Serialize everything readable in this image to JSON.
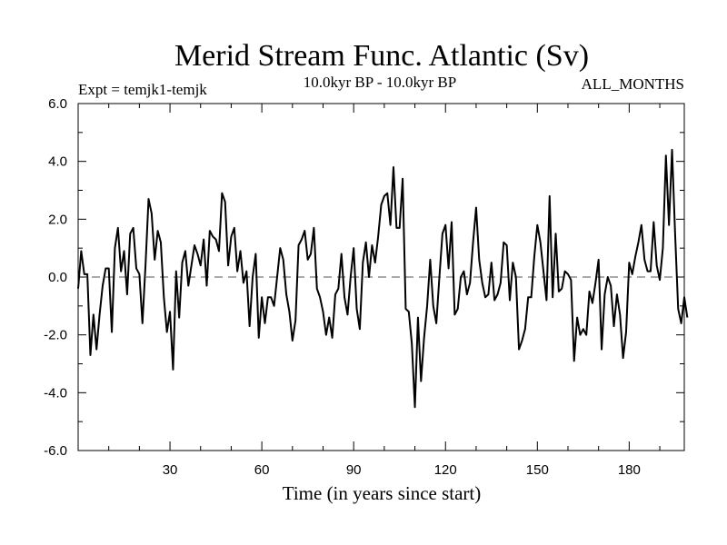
{
  "chart_data": {
    "type": "line",
    "title": "Merid Stream Func. Atlantic (Sv)",
    "left_label": "Expt = temjk1-temjk",
    "center_label": "10.0kyr BP - 10.0kyr BP",
    "right_label": "ALL_MONTHS",
    "xlabel": "Time (in years since start)",
    "ylabel": "",
    "xlim": [
      0,
      198
    ],
    "ylim": [
      -6,
      6
    ],
    "xticks": [
      30,
      60,
      90,
      120,
      150,
      180
    ],
    "xtick_labels": [
      "30",
      "60",
      "90",
      "120",
      "150",
      "180"
    ],
    "yticks": [
      6,
      4,
      2,
      0,
      -2,
      -4,
      -6
    ],
    "ytick_labels": [
      "6.0",
      "4.0",
      "2.0",
      "0.0",
      "-2.0",
      "-4.0",
      "-6.0"
    ],
    "reference_line": {
      "y": 0,
      "style": "dashed"
    },
    "series": [
      {
        "name": "Merid Stream Func. Atlantic",
        "x_start": 0,
        "x_step": 1,
        "values": [
          -0.4,
          0.9,
          0.1,
          0.1,
          -2.7,
          -1.3,
          -2.5,
          -1.3,
          -0.3,
          0.3,
          0.3,
          -1.9,
          1.0,
          1.7,
          0.2,
          0.9,
          -0.6,
          1.5,
          1.7,
          0.3,
          0.1,
          -1.6,
          0.4,
          2.7,
          2.2,
          0.6,
          1.6,
          1.2,
          -0.7,
          -1.9,
          -1.2,
          -3.2,
          0.2,
          -1.4,
          0.5,
          0.9,
          -0.3,
          0.4,
          1.1,
          0.8,
          0.4,
          1.3,
          -0.3,
          1.6,
          1.4,
          1.3,
          0.9,
          2.9,
          2.6,
          0.4,
          1.4,
          1.7,
          0.2,
          0.9,
          -0.2,
          0.2,
          -1.7,
          0.0,
          0.8,
          -2.1,
          -0.7,
          -1.6,
          -0.7,
          -0.7,
          -1.0,
          0.0,
          1.0,
          0.6,
          -0.6,
          -1.2,
          -2.2,
          -1.5,
          1.1,
          1.3,
          1.6,
          0.6,
          0.8,
          1.7,
          -0.4,
          -0.7,
          -1.2,
          -2.0,
          -1.4,
          -2.1,
          -0.6,
          -0.4,
          0.8,
          -0.7,
          -1.3,
          0.0,
          1.0,
          -1.1,
          -1.8,
          0.5,
          1.2,
          0.0,
          1.1,
          0.5,
          1.4,
          2.5,
          2.8,
          2.9,
          1.8,
          3.8,
          1.7,
          1.7,
          3.4,
          -1.1,
          -1.2,
          -2.3,
          -4.5,
          -1.4,
          -3.6,
          -2.1,
          -1.0,
          0.6,
          -1.0,
          -1.6,
          0.0,
          1.5,
          1.8,
          0.3,
          1.9,
          -1.3,
          -1.1,
          0.0,
          0.2,
          -0.6,
          -0.2,
          1.2,
          2.4,
          0.6,
          -0.2,
          -0.7,
          -0.6,
          0.5,
          -0.8,
          -0.6,
          -0.2,
          1.2,
          1.1,
          -0.8,
          0.5,
          0.0,
          -2.5,
          -2.2,
          -1.8,
          -0.7,
          -0.7,
          0.7,
          1.8,
          1.2,
          0.2,
          -0.8,
          2.8,
          -0.7,
          1.5,
          -0.5,
          -0.4,
          0.2,
          0.1,
          -0.1,
          -2.9,
          -1.4,
          -2.0,
          -1.8,
          -2.0,
          -0.5,
          -0.9,
          -0.2,
          0.6,
          -2.5,
          -0.6,
          0.0,
          -0.3,
          -1.7,
          -0.6,
          -1.3,
          -2.8,
          -1.9,
          0.5,
          0.1,
          0.7,
          1.2,
          1.8,
          0.6,
          0.2,
          0.2,
          1.9,
          0.4,
          -0.1,
          1.0,
          4.2,
          1.8,
          4.4,
          1.5,
          -1.1,
          -1.6,
          -0.7,
          -1.4
        ]
      }
    ]
  }
}
